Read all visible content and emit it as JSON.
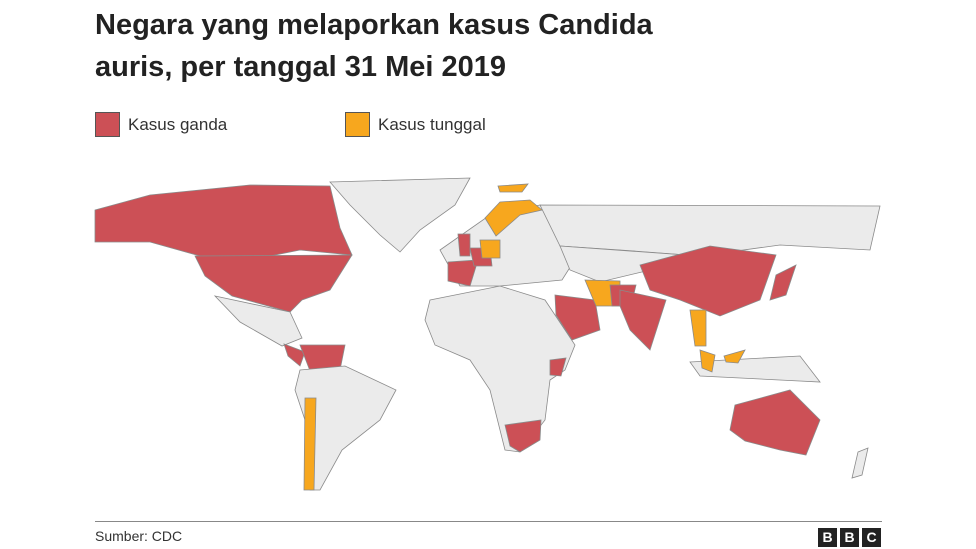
{
  "header": {
    "title_lines": [
      "Negara yang melaporkan kasus Candida",
      "auris, per tanggal 31 Mei 2019"
    ]
  },
  "legend": [
    {
      "label": "Kasus ganda",
      "color": "#cc5056"
    },
    {
      "label": "Kasus tunggal",
      "color": "#f7a71e"
    }
  ],
  "footer": {
    "source": "Sumber: CDC",
    "logo": [
      "B",
      "B",
      "C"
    ]
  }
}
